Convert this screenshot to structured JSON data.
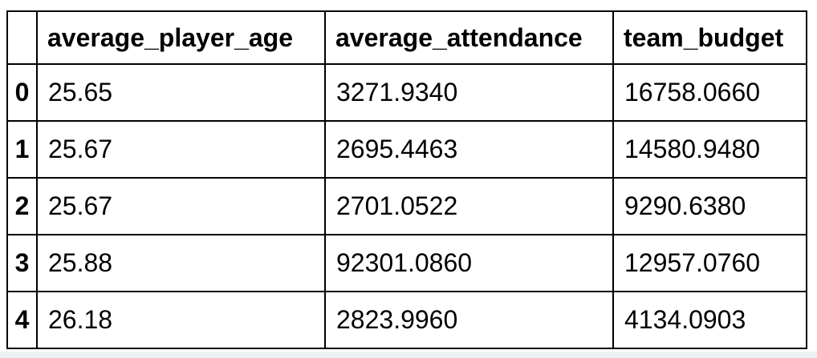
{
  "table": {
    "columns": [
      "",
      "average_player_age",
      "average_attendance",
      "team_budget"
    ],
    "rows": [
      {
        "index": "0",
        "average_player_age": "25.65",
        "average_attendance": "3271.9340",
        "team_budget": "16758.0660"
      },
      {
        "index": "1",
        "average_player_age": "25.67",
        "average_attendance": "2695.4463",
        "team_budget": "14580.9480"
      },
      {
        "index": "2",
        "average_player_age": "25.67",
        "average_attendance": "2701.0522",
        "team_budget": "9290.6380"
      },
      {
        "index": "3",
        "average_player_age": "25.88",
        "average_attendance": "92301.0860",
        "team_budget": "12957.0760"
      },
      {
        "index": "4",
        "average_player_age": "26.18",
        "average_attendance": "2823.9960",
        "team_budget": "4134.0903"
      }
    ]
  },
  "colors": {
    "table_border": "#000000",
    "text": "#000000",
    "background": "#ffffff",
    "bottom_strip": "#edf0f2"
  }
}
